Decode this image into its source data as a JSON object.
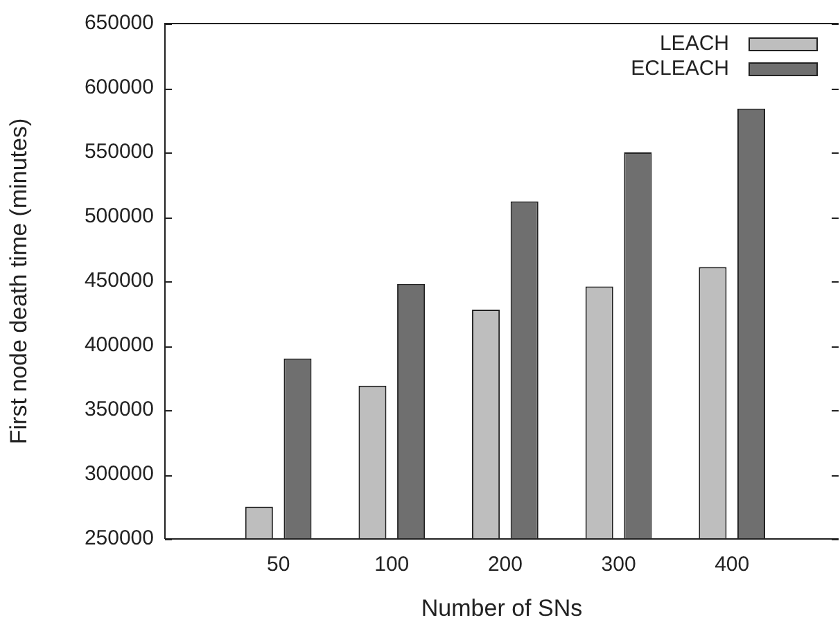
{
  "chart_data": {
    "type": "bar",
    "xlabel": "Number of SNs",
    "ylabel": "First node death time (minutes)",
    "categories": [
      "50",
      "100",
      "200",
      "300",
      "400"
    ],
    "series": [
      {
        "name": "LEACH",
        "color": "#bebebe",
        "values": [
          275000,
          369000,
          428000,
          446000,
          461000
        ]
      },
      {
        "name": "ECLEACH",
        "color": "#6f6f6f",
        "values": [
          390000,
          448000,
          512000,
          550000,
          584000
        ]
      }
    ],
    "ylim": [
      250000,
      650000
    ],
    "yticks": [
      250000,
      300000,
      350000,
      400000,
      450000,
      500000,
      550000,
      600000,
      650000
    ],
    "grid": false,
    "legend": "top right"
  }
}
